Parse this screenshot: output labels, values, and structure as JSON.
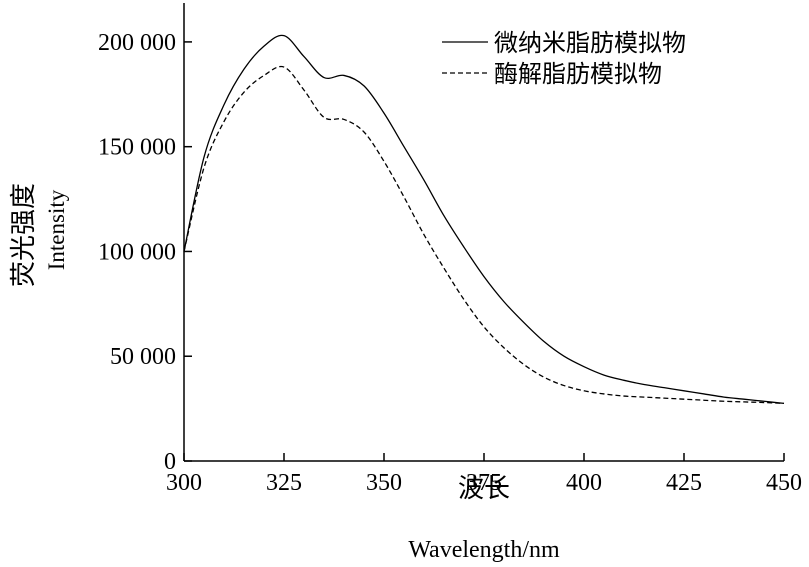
{
  "chart_data": {
    "type": "line",
    "xlabel_cn": "波长",
    "xlabel_en": "Wavelength/nm",
    "ylabel_cn": "荧光强度",
    "ylabel_en": "Intensity",
    "xlim": [
      300,
      450
    ],
    "ylim": [
      0,
      220000
    ],
    "x_ticks": [
      300,
      325,
      350,
      375,
      400,
      425,
      450
    ],
    "x_tick_labels": [
      "300",
      "325",
      "350",
      "375",
      "400",
      "425",
      "450"
    ],
    "y_ticks": [
      0,
      50000,
      100000,
      150000,
      200000
    ],
    "y_tick_labels": [
      "0",
      "50 000",
      "100 000",
      "150 000",
      "200 000"
    ],
    "grid": false,
    "legend_position": "top-right",
    "x": [
      300,
      305,
      310,
      315,
      320,
      325,
      330,
      335,
      340,
      345,
      350,
      355,
      360,
      365,
      370,
      375,
      380,
      385,
      390,
      395,
      400,
      405,
      410,
      415,
      420,
      425,
      430,
      435,
      440,
      445,
      450
    ],
    "series": [
      {
        "name": "微纳米脂肪模拟物",
        "style": "solid",
        "color": "#000000",
        "values": [
          100000,
          145000,
          170000,
          187000,
          198000,
          203000,
          193000,
          183000,
          184000,
          179000,
          166000,
          150000,
          134000,
          117000,
          102000,
          88000,
          76000,
          66000,
          57000,
          50000,
          45000,
          41000,
          38500,
          36500,
          35000,
          33500,
          32000,
          30500,
          29500,
          28500,
          27500
        ]
      },
      {
        "name": "酶解脂肪模拟物",
        "style": "dashed",
        "color": "#000000",
        "values": [
          100000,
          140000,
          162000,
          176000,
          184000,
          188000,
          177000,
          164000,
          163000,
          157000,
          143000,
          126000,
          108000,
          92000,
          77000,
          64000,
          54000,
          46000,
          40000,
          36000,
          33500,
          32000,
          31000,
          30500,
          30000,
          29500,
          29000,
          28500,
          28200,
          27900,
          27500
        ]
      }
    ]
  }
}
